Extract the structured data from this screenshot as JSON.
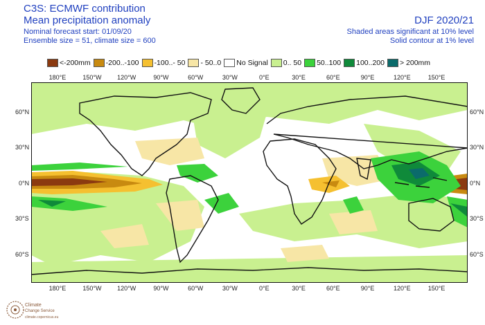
{
  "header": {
    "title": "C3S: ECMWF contribution",
    "subtitle": "Mean precipitation anomaly",
    "start": "Nominal forecast start: 01/09/20",
    "ensemble": "Ensemble size = 51, climate size = 600",
    "season": "DJF 2020/21",
    "note1": "Shaded areas significant at 10% level",
    "note2": "Solid contour at 1% level"
  },
  "legend": [
    {
      "label": "<-200mm",
      "color": "#8b3a10"
    },
    {
      "label": "-200..-100",
      "color": "#c88a10"
    },
    {
      "label": "-100..- 50",
      "color": "#f5c030"
    },
    {
      "label": "- 50..0",
      "color": "#f7e6a6"
    },
    {
      "label": "No Signal",
      "color": "#ffffff"
    },
    {
      "label": "0.. 50",
      "color": "#c9f090"
    },
    {
      "label": "50..100",
      "color": "#3cd23c"
    },
    {
      "label": "100..200",
      "color": "#0f8a3a"
    },
    {
      "label": "> 200mm",
      "color": "#0b6b6b"
    }
  ],
  "axes": {
    "lon_labels": [
      "180°E",
      "150°W",
      "120°W",
      "90°W",
      "60°W",
      "30°W",
      "0°E",
      "30°E",
      "60°E",
      "90°E",
      "120°E",
      "150°E"
    ],
    "lon_values": [
      180,
      210,
      240,
      270,
      300,
      330,
      360,
      390,
      420,
      450,
      480,
      510
    ],
    "lat_labels": [
      "60°N",
      "30°N",
      "0°N",
      "30°S",
      "60°S"
    ],
    "lat_values": [
      60,
      30,
      0,
      -30,
      -60
    ],
    "lon_range": [
      157,
      537
    ],
    "lat_range": [
      -84,
      85
    ]
  },
  "logo": {
    "line1": "Climate",
    "line2": "Change Service",
    "line3": "climate.copernicus.eu"
  }
}
